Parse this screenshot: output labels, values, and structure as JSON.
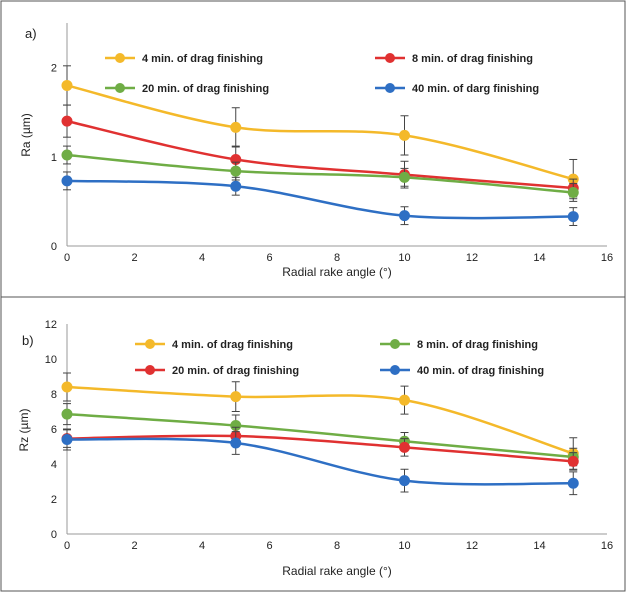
{
  "chart_data": [
    {
      "panel_label": "a)",
      "type": "line",
      "xlabel": "Radial rake angle (°)",
      "ylabel": "Ra (µm)",
      "xlim": [
        0,
        16
      ],
      "ylim": [
        0,
        2.5
      ],
      "xticks": [
        0,
        2,
        4,
        6,
        8,
        10,
        12,
        14,
        16
      ],
      "yticks": [
        0,
        1,
        2
      ],
      "grid": false,
      "legend_position": "top-inside",
      "x": [
        0,
        5,
        10,
        15
      ],
      "series": [
        {
          "name": "4 min. of drag finishing",
          "color": "#F4B92A",
          "values": [
            1.8,
            1.33,
            1.24,
            0.75
          ],
          "errors": [
            0.22,
            0.22,
            0.22,
            0.22
          ]
        },
        {
          "name": "8 min. of drag finishing",
          "color": "#E03131",
          "values": [
            1.4,
            0.97,
            0.8,
            0.65
          ],
          "errors": [
            0.18,
            0.15,
            0.15,
            0.1
          ]
        },
        {
          "name": "20 min. of drag finishing",
          "color": "#6FAD45",
          "values": [
            1.02,
            0.84,
            0.77,
            0.6
          ],
          "errors": [
            0.1,
            0.1,
            0.1,
            0.1
          ]
        },
        {
          "name": "40 min. of darg finishing",
          "color": "#2E6FC4",
          "values": [
            0.73,
            0.67,
            0.34,
            0.33
          ],
          "errors": [
            0.1,
            0.1,
            0.1,
            0.1
          ]
        }
      ]
    },
    {
      "panel_label": "b)",
      "type": "line",
      "xlabel": "Radial rake angle (°)",
      "ylabel": "Rz (µm)",
      "xlim": [
        0,
        16
      ],
      "ylim": [
        0,
        12
      ],
      "xticks": [
        0,
        2,
        4,
        6,
        8,
        10,
        12,
        14,
        16
      ],
      "yticks": [
        0,
        2,
        4,
        6,
        8,
        10,
        12
      ],
      "grid": false,
      "legend_position": "top-inside",
      "x": [
        0,
        5,
        10,
        15
      ],
      "series": [
        {
          "name": "4 min. of drag finishing",
          "color": "#F4B92A",
          "values": [
            8.4,
            7.85,
            7.65,
            4.6
          ],
          "errors": [
            0.8,
            0.85,
            0.8,
            0.9
          ]
        },
        {
          "name": "8 min. of drag finishing",
          "color": "#6FAD45",
          "values": [
            6.85,
            6.2,
            5.3,
            4.4
          ],
          "errors": [
            0.6,
            0.6,
            0.5,
            0.5
          ]
        },
        {
          "name": "20 min. of drag finishing",
          "color": "#E03131",
          "values": [
            5.45,
            5.6,
            4.95,
            4.15
          ],
          "errors": [
            0.5,
            0.5,
            0.5,
            0.5
          ]
        },
        {
          "name": "40 min. of drag finishing",
          "color": "#2E6FC4",
          "values": [
            5.4,
            5.2,
            3.05,
            2.9
          ],
          "errors": [
            0.6,
            0.65,
            0.65,
            0.65
          ]
        }
      ]
    }
  ]
}
